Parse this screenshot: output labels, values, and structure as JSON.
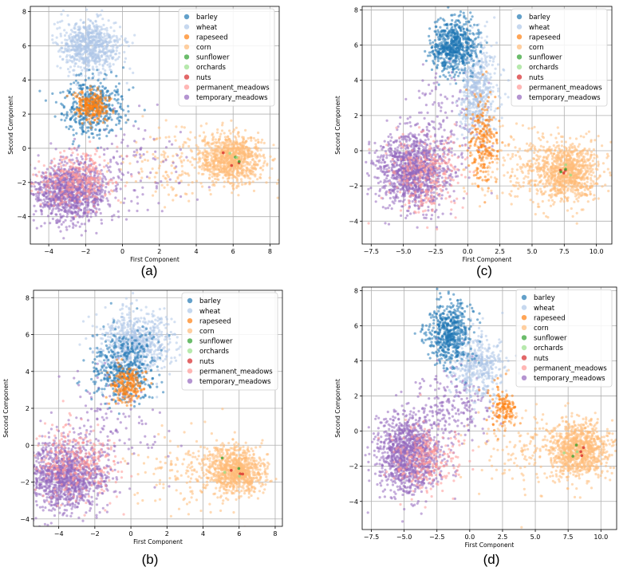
{
  "legend_labels": [
    "barley",
    "wheat",
    "rapeseed",
    "corn",
    "sunflower",
    "orchards",
    "nuts",
    "permanent_meadows",
    "temporary_meadows"
  ],
  "colors": {
    "barley": "#1f77b4",
    "wheat": "#aec7e8",
    "rapeseed": "#ff7f0e",
    "corn": "#ffbb78",
    "sunflower": "#2ca02c",
    "orchards": "#98df8a",
    "nuts": "#d62728",
    "permanent_meadows": "#ff9896",
    "temporary_meadows": "#9467bd"
  },
  "chart_data": [
    {
      "id": "a",
      "type": "scatter",
      "caption": "(a)",
      "xlabel": "First Component",
      "ylabel": "Second Component",
      "xlim": [
        -5,
        8.5
      ],
      "ylim": [
        -5.6,
        8.3
      ],
      "xticks": [
        -4,
        -2,
        0,
        2,
        4,
        6,
        8
      ],
      "yticks": [
        -4,
        -2,
        0,
        2,
        4,
        6,
        8
      ],
      "legend_loc": "upper-right",
      "grid": true,
      "clusters": [
        {
          "cls": "temporary_meadows",
          "cx": -2.8,
          "cy": -2.5,
          "sx": 1.0,
          "sy": 0.85,
          "n": 1100
        },
        {
          "cls": "permanent_meadows",
          "cx": -2.5,
          "cy": -1.9,
          "sx": 1.1,
          "sy": 0.8,
          "n": 320
        },
        {
          "cls": "corn",
          "cx": 5.9,
          "cy": -0.6,
          "sx": 0.85,
          "sy": 0.7,
          "n": 900
        },
        {
          "cls": "corn",
          "cx": 3.0,
          "cy": -1.0,
          "sx": 1.6,
          "sy": 1.1,
          "n": 160
        },
        {
          "cls": "wheat",
          "cx": -1.8,
          "cy": 6.0,
          "sx": 0.85,
          "sy": 0.7,
          "n": 750
        },
        {
          "cls": "barley",
          "cx": -1.6,
          "cy": 2.4,
          "sx": 0.85,
          "sy": 0.9,
          "n": 420
        },
        {
          "cls": "rapeseed",
          "cx": -1.7,
          "cy": 2.5,
          "sx": 0.45,
          "sy": 0.4,
          "n": 240
        },
        {
          "cls": "temporary_meadows",
          "cx": 0.5,
          "cy": -1.0,
          "sx": 1.8,
          "sy": 1.5,
          "n": 110
        }
      ]
    },
    {
      "id": "c",
      "type": "scatter",
      "caption": "(c)",
      "xlabel": "First Component",
      "ylabel": "Second Component",
      "xlim": [
        -8.2,
        11.2
      ],
      "ylim": [
        -5.3,
        8.2
      ],
      "xticks": [
        -7.5,
        -5.0,
        -2.5,
        0.0,
        2.5,
        5.0,
        7.5,
        10.0
      ],
      "yticks": [
        -4,
        -2,
        0,
        2,
        4,
        6,
        8
      ],
      "legend_loc": "upper-right",
      "grid": true,
      "clusters": [
        {
          "cls": "temporary_meadows",
          "cx": -4.3,
          "cy": -1.1,
          "sx": 1.3,
          "sy": 1.05,
          "n": 1150
        },
        {
          "cls": "permanent_meadows",
          "cx": -3.2,
          "cy": -1.4,
          "sx": 1.4,
          "sy": 1.1,
          "n": 280
        },
        {
          "cls": "corn",
          "cx": 7.6,
          "cy": -1.2,
          "sx": 1.3,
          "sy": 0.8,
          "n": 950
        },
        {
          "cls": "corn",
          "cx": 4.0,
          "cy": -1.0,
          "sx": 2.2,
          "sy": 1.2,
          "n": 170
        },
        {
          "cls": "barley",
          "cx": -1.1,
          "cy": 5.9,
          "sx": 0.9,
          "sy": 0.75,
          "n": 650
        },
        {
          "cls": "wheat",
          "cx": 0.8,
          "cy": 3.4,
          "sx": 0.7,
          "sy": 1.3,
          "n": 520
        },
        {
          "cls": "rapeseed",
          "cx": 1.2,
          "cy": 0.5,
          "sx": 0.55,
          "sy": 1.3,
          "n": 220
        },
        {
          "cls": "temporary_meadows",
          "cx": -1.5,
          "cy": 1.5,
          "sx": 1.5,
          "sy": 1.8,
          "n": 140
        }
      ]
    },
    {
      "id": "b",
      "type": "scatter",
      "caption": "(b)",
      "xlabel": "First Component",
      "ylabel": "Second Component",
      "xlim": [
        -5.4,
        8.4
      ],
      "ylim": [
        -4.4,
        8.4
      ],
      "xticks": [
        -4,
        -2,
        0,
        2,
        4,
        6,
        8
      ],
      "yticks": [
        -4,
        -2,
        0,
        2,
        4,
        6,
        8
      ],
      "legend_loc": "upper-right",
      "grid": true,
      "clusters": [
        {
          "cls": "temporary_meadows",
          "cx": -3.6,
          "cy": -1.7,
          "sx": 1.05,
          "sy": 0.95,
          "n": 1150
        },
        {
          "cls": "permanent_meadows",
          "cx": -3.0,
          "cy": -1.0,
          "sx": 1.2,
          "sy": 1.0,
          "n": 320
        },
        {
          "cls": "corn",
          "cx": 5.8,
          "cy": -1.4,
          "sx": 0.8,
          "sy": 0.65,
          "n": 900
        },
        {
          "cls": "corn",
          "cx": 3.0,
          "cy": -1.3,
          "sx": 1.5,
          "sy": 1.0,
          "n": 150
        },
        {
          "cls": "wheat",
          "cx": 0.3,
          "cy": 5.6,
          "sx": 1.0,
          "sy": 0.9,
          "n": 720
        },
        {
          "cls": "barley",
          "cx": -0.4,
          "cy": 4.2,
          "sx": 0.9,
          "sy": 1.0,
          "n": 430
        },
        {
          "cls": "rapeseed",
          "cx": -0.2,
          "cy": 3.3,
          "sx": 0.5,
          "sy": 0.5,
          "n": 200
        },
        {
          "cls": "temporary_meadows",
          "cx": -1.3,
          "cy": 1.0,
          "sx": 1.5,
          "sy": 1.5,
          "n": 150
        }
      ]
    },
    {
      "id": "d",
      "type": "scatter",
      "caption": "(d)",
      "xlabel": "First Component",
      "ylabel": "Second Component",
      "xlim": [
        -8.2,
        11.2
      ],
      "ylim": [
        -5.6,
        8.2
      ],
      "xticks": [
        -7.5,
        -5.0,
        -2.5,
        0.0,
        2.5,
        5.0,
        7.5,
        10.0
      ],
      "yticks": [
        -4,
        -2,
        0,
        2,
        4,
        6,
        8
      ],
      "legend_loc": "upper-right",
      "grid": true,
      "clusters": [
        {
          "cls": "temporary_meadows",
          "cx": -4.6,
          "cy": -1.3,
          "sx": 1.2,
          "sy": 1.1,
          "n": 1150
        },
        {
          "cls": "permanent_meadows",
          "cx": -3.5,
          "cy": -1.6,
          "sx": 1.3,
          "sy": 1.0,
          "n": 260
        },
        {
          "cls": "corn",
          "cx": 8.3,
          "cy": -1.1,
          "sx": 1.1,
          "sy": 0.8,
          "n": 900
        },
        {
          "cls": "corn",
          "cx": 4.5,
          "cy": -1.0,
          "sx": 2.3,
          "sy": 1.2,
          "n": 200
        },
        {
          "cls": "barley",
          "cx": -1.5,
          "cy": 5.6,
          "sx": 0.85,
          "sy": 0.95,
          "n": 550
        },
        {
          "cls": "wheat",
          "cx": 0.6,
          "cy": 3.7,
          "sx": 1.0,
          "sy": 0.9,
          "n": 420
        },
        {
          "cls": "rapeseed",
          "cx": 2.5,
          "cy": 1.3,
          "sx": 0.55,
          "sy": 0.6,
          "n": 130
        },
        {
          "cls": "temporary_meadows",
          "cx": -1.0,
          "cy": 1.5,
          "sx": 1.4,
          "sy": 1.2,
          "n": 200
        }
      ]
    }
  ]
}
